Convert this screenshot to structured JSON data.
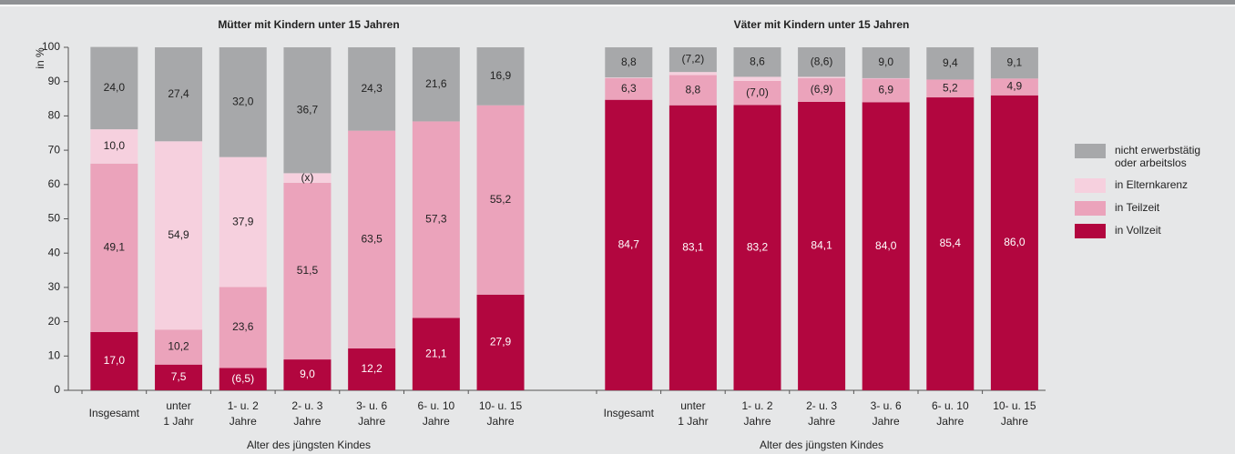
{
  "chart_data": [
    {
      "type": "stacked_bar",
      "title": "Mütter mit Kindern unter 15 Jahren",
      "y_label": "in %",
      "x_label": "Alter des jüngsten Kindes",
      "categories": [
        [
          "Insgesamt"
        ],
        [
          "unter",
          "1 Jahr"
        ],
        [
          "1- u. 2",
          "Jahre"
        ],
        [
          "2- u. 3",
          "Jahre"
        ],
        [
          "3- u. 6",
          "Jahre"
        ],
        [
          "6- u. 10",
          "Jahre"
        ],
        [
          "10- u. 15",
          "Jahre"
        ]
      ],
      "ylim": [
        0,
        100
      ],
      "yticks": [
        0,
        10,
        20,
        30,
        40,
        50,
        60,
        70,
        80,
        90,
        100
      ],
      "series": [
        {
          "name": "nicht erwerbstätig oder arbeitslos",
          "color": "#a7a8aa",
          "values": [
            24.0,
            27.4,
            32.0,
            36.7,
            24.3,
            21.6,
            16.9
          ],
          "value_labels": [
            "24,0",
            "27,4",
            "32,0",
            "36,7",
            "24,3",
            "21,6",
            "16,9"
          ]
        },
        {
          "name": "in Elternkarenz",
          "color": "#f6d0de",
          "values": [
            10.0,
            54.9,
            37.9,
            2.8,
            null,
            null,
            null
          ],
          "value_labels": [
            "10,0",
            "54,9",
            "37,9",
            "(x)",
            null,
            null,
            null
          ]
        },
        {
          "name": "in Teilzeit",
          "color": "#eba3bb",
          "values": [
            49.1,
            10.2,
            23.6,
            51.5,
            63.5,
            57.3,
            55.2
          ],
          "value_labels": [
            "49,1",
            "10,2",
            "23,6",
            "51,5",
            "63,5",
            "57,3",
            "55,2"
          ]
        },
        {
          "name": "in Vollzeit",
          "color": "#b2063f",
          "values": [
            17.0,
            7.5,
            6.5,
            9.0,
            12.2,
            21.1,
            27.9
          ],
          "value_labels": [
            "17,0",
            "7,5",
            "(6,5)",
            "9,0",
            "12,2",
            "21,1",
            "27,9"
          ]
        }
      ]
    },
    {
      "type": "stacked_bar",
      "title": "Väter mit Kindern unter 15 Jahren",
      "x_label": "Alter des jüngsten Kindes",
      "categories": [
        [
          "Insgesamt"
        ],
        [
          "unter",
          "1 Jahr"
        ],
        [
          "1- u. 2",
          "Jahre"
        ],
        [
          "2- u. 3",
          "Jahre"
        ],
        [
          "3- u. 6",
          "Jahre"
        ],
        [
          "6- u. 10",
          "Jahre"
        ],
        [
          "10- u. 15",
          "Jahre"
        ]
      ],
      "ylim": [
        0,
        100
      ],
      "series": [
        {
          "color": "#a7a8aa",
          "values": [
            8.8,
            7.2,
            8.6,
            8.6,
            9.0,
            9.4,
            9.1
          ],
          "value_labels": [
            "8,8",
            "(7,2)",
            "8,6",
            "(8,6)",
            "9,0",
            "9,4",
            "9,1"
          ]
        },
        {
          "color": "#f6d0de",
          "values": [
            0.2,
            0.9,
            1.2,
            0.4,
            0.1,
            null,
            null
          ]
        },
        {
          "color": "#eba3bb",
          "values": [
            6.3,
            8.8,
            7.0,
            6.9,
            6.9,
            5.2,
            4.9
          ],
          "value_labels": [
            "6,3",
            "8,8",
            "(7,0)",
            "(6,9)",
            "6,9",
            "5,2",
            "4,9"
          ]
        },
        {
          "color": "#b2063f",
          "values": [
            84.7,
            83.1,
            83.2,
            84.1,
            84.0,
            85.4,
            86.0
          ],
          "value_labels": [
            "84,7",
            "83,1",
            "83,2",
            "84,1",
            "84,0",
            "85,4",
            "86,0"
          ]
        }
      ]
    }
  ]
}
